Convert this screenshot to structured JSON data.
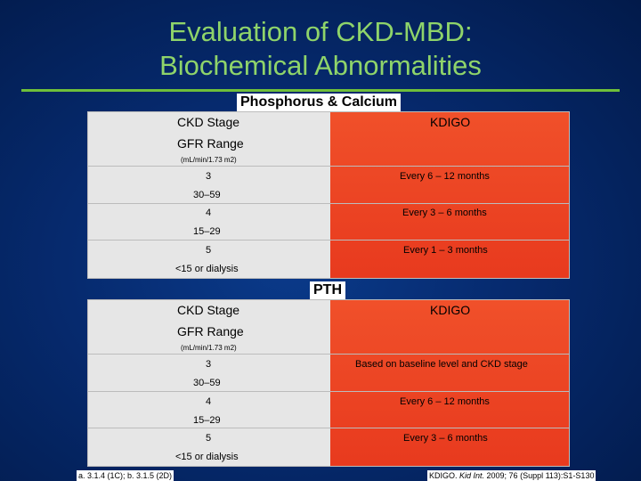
{
  "title": {
    "line1": "Evaluation of CKD-MBD:",
    "line2": "Biochemical Abnormalities"
  },
  "colors": {
    "title": "#8fd46a",
    "rule": "#6fbf3a",
    "background": "#062a6e",
    "kdigo_column": "#e83a1e",
    "stage_column": "#e6e6e6"
  },
  "phosphorus_calcium": {
    "label": "Phosphorus & Calcium",
    "header": {
      "stage": "CKD Stage",
      "gfr": "GFR Range",
      "unit": "(mL/min/1.73 m2)",
      "kdigo": "KDIGO"
    },
    "rows": [
      {
        "stage": "3",
        "gfr": "30–59",
        "kdigo": "Every 6 – 12 months"
      },
      {
        "stage": "4",
        "gfr": "15–29",
        "kdigo": "Every 3 – 6 months"
      },
      {
        "stage": "5",
        "gfr": "<15 or dialysis",
        "kdigo": "Every 1 – 3 months"
      }
    ]
  },
  "pth": {
    "label": "PTH",
    "header": {
      "stage": "CKD Stage",
      "gfr": "GFR Range",
      "unit": "(mL/min/1.73 m2)",
      "kdigo": "KDIGO"
    },
    "rows": [
      {
        "stage": "3",
        "gfr": "30–59",
        "kdigo": "Based on baseline level and CKD stage"
      },
      {
        "stage": "4",
        "gfr": "15–29",
        "kdigo": "Every 6 – 12 months"
      },
      {
        "stage": "5",
        "gfr": "<15 or dialysis",
        "kdigo": "Every 3 – 6 months"
      }
    ]
  },
  "footer": {
    "left": "a. 3.1.4 (1C); b. 3.1.5 (2D)",
    "right_prefix": "KDIGO. ",
    "right_journal": "Kid Int.",
    "right_suffix": " 2009; 76 (Suppl 113):S1-S130"
  }
}
